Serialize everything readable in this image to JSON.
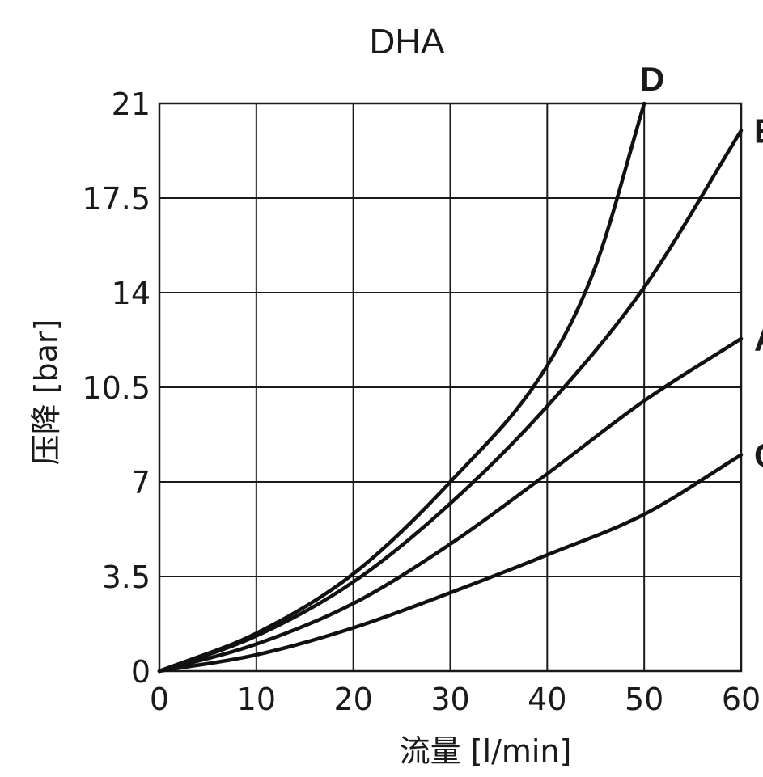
{
  "chart_data": {
    "type": "line",
    "title": "DHA",
    "xlabel": "流量 [l/min]",
    "ylabel": "压降 [bar]",
    "xlim": [
      0,
      60
    ],
    "ylim": [
      0,
      21
    ],
    "x_ticks": [
      0,
      10,
      20,
      30,
      40,
      50,
      60
    ],
    "x_tick_labels": [
      "0",
      "10",
      "20",
      "30",
      "40",
      "50",
      "60"
    ],
    "y_ticks": [
      0,
      3.5,
      7,
      10.5,
      14,
      17.5,
      21
    ],
    "y_tick_labels": [
      "0",
      "3.5",
      "7",
      "10.5",
      "14",
      "17.5",
      "21"
    ],
    "grid": true,
    "series": [
      {
        "name": "D",
        "x": [
          0,
          10,
          20,
          30,
          40,
          45,
          50
        ],
        "y": [
          0,
          1.4,
          3.6,
          7.0,
          11.3,
          15.0,
          21.0
        ]
      },
      {
        "name": "B",
        "x": [
          0,
          10,
          20,
          30,
          40,
          50,
          60
        ],
        "y": [
          0,
          1.3,
          3.3,
          6.2,
          9.8,
          14.2,
          20.0
        ]
      },
      {
        "name": "A",
        "x": [
          0,
          10,
          20,
          30,
          40,
          50,
          60
        ],
        "y": [
          0,
          1.0,
          2.5,
          4.7,
          7.3,
          10.0,
          12.3
        ]
      },
      {
        "name": "C",
        "x": [
          0,
          10,
          20,
          30,
          40,
          50,
          60
        ],
        "y": [
          0,
          0.6,
          1.6,
          2.9,
          4.3,
          5.8,
          8.0
        ]
      }
    ]
  }
}
